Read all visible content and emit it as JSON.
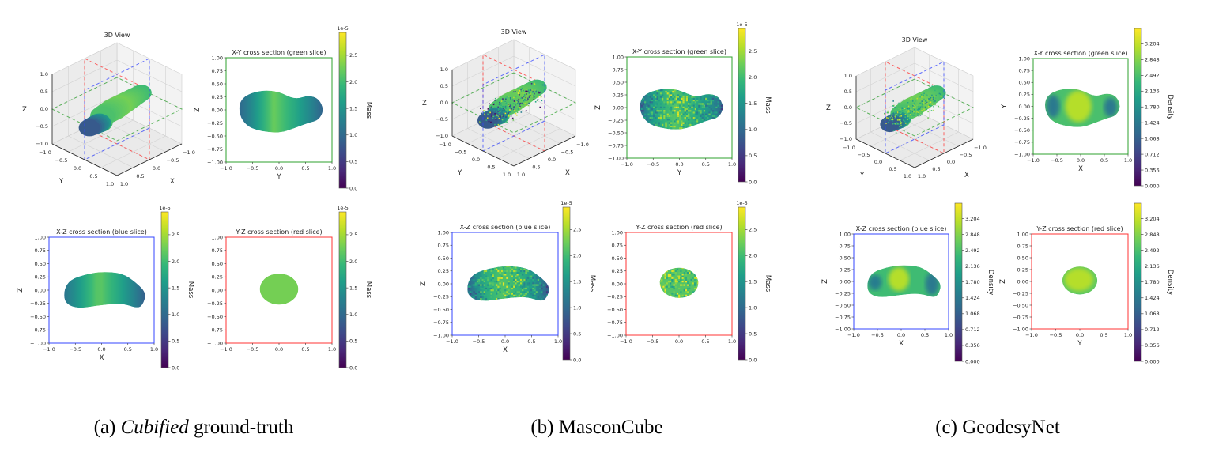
{
  "chart_data": [
    {
      "id": "a",
      "caption": {
        "label": "(a)",
        "emph": "Cubified",
        "rest": "ground-truth"
      },
      "colorbar": {
        "label": "Mass",
        "scale_label": "1e-5",
        "min": 0,
        "max": 2.93,
        "ticks": [
          "0.0",
          "0.5",
          "1.0",
          "1.5",
          "2.0",
          "2.5"
        ]
      },
      "view3d": {
        "title": "3D View",
        "xlabel": "X",
        "ylabel": "Y",
        "zlabel": "Z",
        "ticks": [
          "−1.0",
          "−0.5",
          "0.0",
          "0.5",
          "1.0"
        ],
        "style": "smooth"
      },
      "xy": {
        "title": "X-Y cross section (green slice)",
        "xlabel": "Y",
        "ylabel": "Z",
        "frame_color": "#2ca02c",
        "shape": "peanut",
        "fill": {
          "mode": "profile",
          "profile": [
            [
              -0.75,
              0.33
            ],
            [
              -0.5,
              0.48
            ],
            [
              -0.1,
              0.76
            ],
            [
              0.3,
              0.6
            ],
            [
              0.6,
              0.45
            ],
            [
              0.85,
              0.3
            ]
          ]
        }
      },
      "xz": {
        "title": "X-Z cross section (blue slice)",
        "xlabel": "X",
        "ylabel": "Z",
        "frame_color": "#3344ff",
        "shape": "bean",
        "fill": {
          "mode": "profile",
          "profile": [
            [
              -0.72,
              0.38
            ],
            [
              -0.4,
              0.55
            ],
            [
              -0.05,
              0.75
            ],
            [
              0.35,
              0.58
            ],
            [
              0.65,
              0.42
            ],
            [
              0.85,
              0.28
            ]
          ]
        }
      },
      "yz": {
        "title": "Y-Z cross section (red slice)",
        "xlabel": "",
        "ylabel": "",
        "frame_color": "#ff3333",
        "shape": "ellipse",
        "fill": {
          "mode": "flat",
          "t": 0.78
        }
      }
    },
    {
      "id": "b",
      "caption": {
        "label": "(b)",
        "emph": "",
        "rest": "MasconCube"
      },
      "colorbar": {
        "label": "Mass",
        "scale_label": "1e-5",
        "min": 0,
        "max": 2.93,
        "ticks": [
          "0.0",
          "0.5",
          "1.0",
          "1.5",
          "2.0",
          "2.5"
        ]
      },
      "view3d": {
        "title": "3D View",
        "xlabel": "X",
        "ylabel": "Y",
        "zlabel": "Z",
        "ticks": [
          "−1.0",
          "−0.5",
          "0.0",
          "0.5",
          "1.0"
        ],
        "style": "noisy"
      },
      "xy": {
        "title": "X-Y cross section (green slice)",
        "xlabel": "Y",
        "ylabel": "Z",
        "frame_color": "#2ca02c",
        "shape": "peanut",
        "fill": {
          "mode": "noisy",
          "profile": [
            [
              -0.75,
              0.35
            ],
            [
              -0.5,
              0.55
            ],
            [
              -0.1,
              0.72
            ],
            [
              0.3,
              0.62
            ],
            [
              0.6,
              0.5
            ],
            [
              0.85,
              0.3
            ]
          ]
        }
      },
      "xz": {
        "title": "X-Z cross section (blue slice)",
        "xlabel": "X",
        "ylabel": "Z",
        "frame_color": "#3344ff",
        "shape": "bean",
        "fill": {
          "mode": "noisy",
          "profile": [
            [
              -0.72,
              0.3
            ],
            [
              -0.4,
              0.6
            ],
            [
              -0.05,
              0.72
            ],
            [
              0.35,
              0.62
            ],
            [
              0.65,
              0.45
            ],
            [
              0.85,
              0.25
            ]
          ]
        }
      },
      "yz": {
        "title": "Y-Z cross section (red slice)",
        "xlabel": "",
        "ylabel": "",
        "frame_color": "#ff3333",
        "shape": "ellipse",
        "fill": {
          "mode": "noisy",
          "profile": [
            [
              -0.4,
              0.72
            ],
            [
              0.4,
              0.72
            ]
          ]
        }
      }
    },
    {
      "id": "c",
      "caption": {
        "label": "(c)",
        "emph": "",
        "rest": "GeodesyNet"
      },
      "colorbar": {
        "label": "Density",
        "scale_label": "",
        "min": 0,
        "max": 3.55,
        "ticks": [
          "0.000",
          "0.356",
          "0.712",
          "1.068",
          "1.424",
          "1.780",
          "2.136",
          "2.492",
          "2.848",
          "3.204"
        ]
      },
      "view3d": {
        "title": "3D View",
        "xlabel": "X",
        "ylabel": "Y",
        "zlabel": "Z",
        "ticks": [
          "−1.0",
          "−0.5",
          "0.0",
          "0.5",
          "1.0"
        ],
        "style": "dotted"
      },
      "xy": {
        "title": "X-Y cross section (green slice)",
        "xlabel": "X",
        "ylabel": "Y",
        "frame_color": "#2ca02c",
        "shape": "peanut",
        "fill": {
          "mode": "spots",
          "t": 0.7,
          "spots": [
            [
              -0.58,
              0.0,
              0.14,
              0.24,
              0.4
            ],
            [
              0.63,
              -0.02,
              0.14,
              0.2,
              0.4
            ],
            [
              -0.05,
              0.0,
              0.28,
              0.33,
              0.88
            ]
          ]
        }
      },
      "xz": {
        "title": "X-Z cross section (blue slice)",
        "xlabel": "X",
        "ylabel": "Z",
        "frame_color": "#3344ff",
        "shape": "bean",
        "fill": {
          "mode": "spots",
          "t": 0.68,
          "spots": [
            [
              -0.55,
              -0.02,
              0.14,
              0.16,
              0.42
            ],
            [
              0.65,
              -0.05,
              0.14,
              0.24,
              0.4
            ],
            [
              -0.05,
              0.05,
              0.22,
              0.25,
              0.88
            ]
          ]
        }
      },
      "yz": {
        "title": "Y-Z cross section (red slice)",
        "xlabel": "Y",
        "ylabel": "Z",
        "frame_color": "#ff3333",
        "shape": "ellipse",
        "fill": {
          "mode": "spots",
          "t": 0.74,
          "spots": [
            [
              -0.02,
              0.04,
              0.3,
              0.24,
              0.88
            ]
          ]
        }
      }
    }
  ],
  "axis_ticks": {
    "x": [
      "−1.0",
      "−0.5",
      "0.0",
      "0.5",
      "1.0"
    ],
    "y": [
      "−1.00",
      "−0.75",
      "−0.50",
      "−0.25",
      "0.00",
      "0.25",
      "0.50",
      "0.75",
      "1.00"
    ]
  },
  "slice_colors": {
    "green": "#2ca02c",
    "blue": "#3344ff",
    "red": "#ff3333"
  }
}
